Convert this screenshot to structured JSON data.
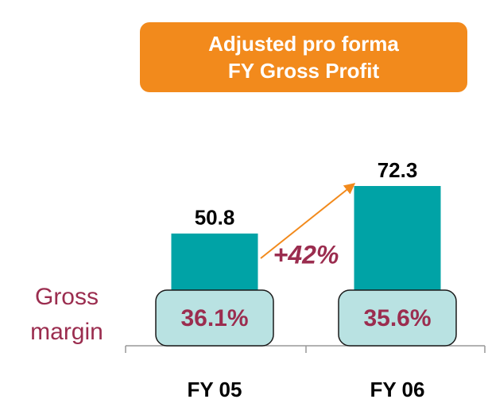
{
  "chart_data": {
    "type": "bar",
    "title": "Adjusted pro forma\nFY Gross Profit",
    "categories": [
      "FY 05",
      "FY 06"
    ],
    "values": [
      50.8,
      72.3
    ],
    "color": "#00a3a6",
    "annotation": "+42%",
    "gross_margin": {
      "label": "Gross\nmargin",
      "values": [
        36.1,
        35.6
      ],
      "value_labels": [
        "36.1%",
        "35.6%"
      ]
    }
  }
}
